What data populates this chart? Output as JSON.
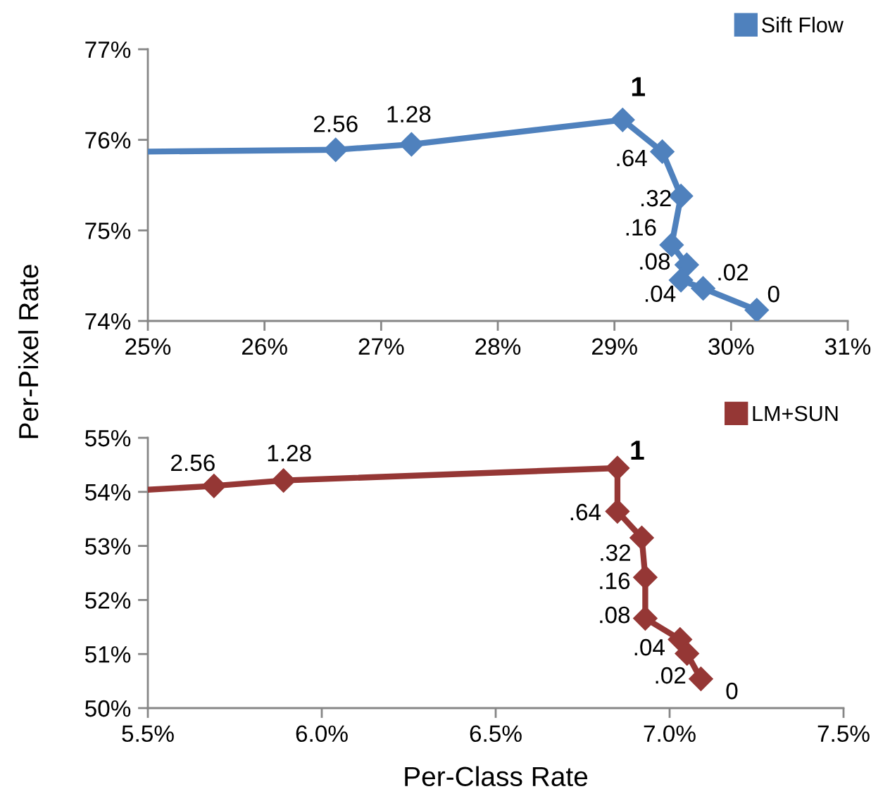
{
  "chart_data": [
    {
      "type": "line",
      "ylabel": "Per-Pixel Rate",
      "legend": "top right",
      "grid": false,
      "xlim": [
        25,
        31
      ],
      "xticks": [
        {
          "value": 25,
          "label": "25%"
        },
        {
          "value": 26,
          "label": "26%"
        },
        {
          "value": 27,
          "label": "27%"
        },
        {
          "value": 28,
          "label": "28%"
        },
        {
          "value": 29,
          "label": "29%"
        },
        {
          "value": 30,
          "label": "30%"
        },
        {
          "value": 31,
          "label": "31%"
        }
      ],
      "ylim": [
        74,
        77
      ],
      "yticks": [
        {
          "value": 74,
          "label": "74%"
        },
        {
          "value": 75,
          "label": "75%"
        },
        {
          "value": 76,
          "label": "76%"
        },
        {
          "value": 77,
          "label": "77%"
        }
      ],
      "series": [
        {
          "color": "#4f81bd",
          "x": [
            25,
            26.61
          ],
          "values": [
            75.87,
            75.89
          ]
        },
        {
          "name": "Sift Flow",
          "color": "#4f81bd",
          "marker": "diamond",
          "x": [
            26.61,
            27.26,
            29.07,
            29.41,
            29.57,
            29.49,
            29.62,
            29.57,
            29.76,
            30.22
          ],
          "values": [
            75.89,
            75.95,
            76.22,
            75.87,
            75.38,
            74.84,
            74.62,
            74.45,
            74.36,
            74.12
          ]
        }
      ],
      "annotations": [
        {
          "text": "2.56",
          "x": 26.61,
          "y": 75.89
        },
        {
          "text": "1.28",
          "x": 27.26,
          "y": 75.95
        },
        {
          "text": "1",
          "x": 29.07,
          "y": 76.22
        },
        {
          "text": ".64",
          "x": 29.41,
          "y": 75.87
        },
        {
          "text": ".32",
          "x": 29.57,
          "y": 75.38
        },
        {
          "text": ".16",
          "x": 29.49,
          "y": 74.84
        },
        {
          "text": ".08",
          "x": 29.62,
          "y": 74.62
        },
        {
          "text": ".04",
          "x": 29.57,
          "y": 74.45
        },
        {
          "text": ".02",
          "x": 29.76,
          "y": 74.36
        },
        {
          "text": "0",
          "x": 30.22,
          "y": 74.12
        }
      ]
    },
    {
      "type": "line",
      "xlabel": "Per-Class Rate",
      "legend": "top right",
      "grid": false,
      "xlim": [
        5.5,
        7.5
      ],
      "xticks": [
        {
          "value": 5.5,
          "label": "5.5%"
        },
        {
          "value": 6.0,
          "label": "6.0%"
        },
        {
          "value": 6.5,
          "label": "6.5%"
        },
        {
          "value": 7.0,
          "label": "7.0%"
        },
        {
          "value": 7.5,
          "label": "7.5%"
        }
      ],
      "ylim": [
        50,
        55
      ],
      "yticks": [
        {
          "value": 50,
          "label": "50%"
        },
        {
          "value": 51,
          "label": "51%"
        },
        {
          "value": 52,
          "label": "52%"
        },
        {
          "value": 53,
          "label": "53%"
        },
        {
          "value": 54,
          "label": "54%"
        },
        {
          "value": 55,
          "label": "55%"
        }
      ],
      "series": [
        {
          "color": "#953735",
          "x": [
            5.5,
            5.69
          ],
          "values": [
            54.04,
            54.11
          ]
        },
        {
          "name": "LM+SUN",
          "color": "#953735",
          "marker": "diamond",
          "x": [
            5.69,
            5.89,
            6.85,
            6.85,
            6.92,
            6.93,
            6.93,
            7.03,
            7.05,
            7.09
          ],
          "values": [
            54.11,
            54.21,
            54.44,
            53.64,
            53.15,
            52.42,
            51.66,
            51.27,
            51.01,
            50.54
          ]
        }
      ],
      "annotations": [
        {
          "text": "2.56",
          "x": 5.69,
          "y": 54.11
        },
        {
          "text": "1.28",
          "x": 5.89,
          "y": 54.21
        },
        {
          "text": "1",
          "x": 6.85,
          "y": 54.44
        },
        {
          "text": ".64",
          "x": 6.85,
          "y": 53.64
        },
        {
          "text": ".32",
          "x": 6.92,
          "y": 53.15
        },
        {
          "text": ".16",
          "x": 6.93,
          "y": 52.42
        },
        {
          "text": ".08",
          "x": 6.93,
          "y": 51.66
        },
        {
          "text": ".04",
          "x": 7.03,
          "y": 51.27
        },
        {
          "text": ".02",
          "x": 7.05,
          "y": 51.01
        },
        {
          "text": "0",
          "x": 7.09,
          "y": 50.54
        }
      ]
    }
  ]
}
